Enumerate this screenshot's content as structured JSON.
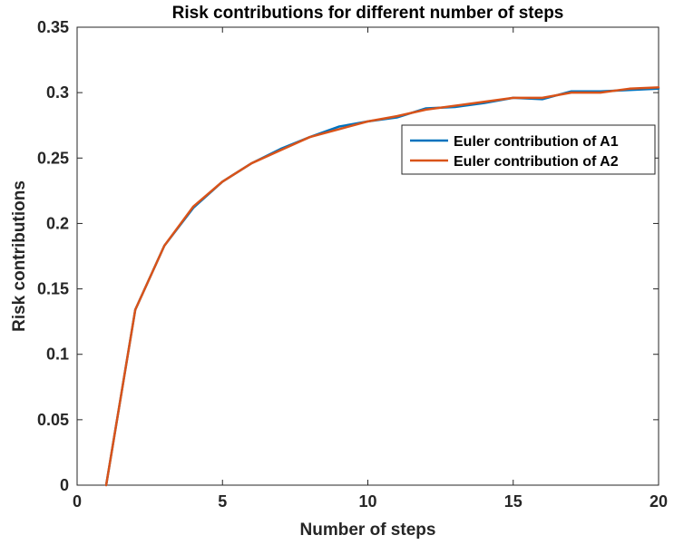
{
  "chart_data": {
    "type": "line",
    "title": "Risk contributions for different number of steps",
    "xlabel": "Number of steps",
    "ylabel": "Risk contributions",
    "xlim": [
      0,
      20
    ],
    "ylim": [
      0,
      0.35
    ],
    "xticks": [
      0,
      5,
      10,
      15,
      20
    ],
    "xtick_labels": [
      "0",
      "5",
      "10",
      "15",
      "20"
    ],
    "yticks": [
      0,
      0.05,
      0.1,
      0.15,
      0.2,
      0.25,
      0.3,
      0.35
    ],
    "ytick_labels": [
      "0",
      "0.05",
      "0.1",
      "0.15",
      "0.2",
      "0.25",
      "0.3",
      "0.35"
    ],
    "grid": false,
    "legend_position": "upper-right",
    "x": [
      1,
      2,
      3,
      4,
      5,
      6,
      7,
      8,
      9,
      10,
      11,
      12,
      13,
      14,
      15,
      16,
      17,
      18,
      19,
      20
    ],
    "series": [
      {
        "name": "Euler contribution of A1",
        "color": "#0072BD",
        "values": [
          0,
          0.134,
          0.183,
          0.212,
          0.232,
          0.246,
          0.257,
          0.266,
          0.274,
          0.278,
          0.281,
          0.288,
          0.289,
          0.292,
          0.296,
          0.295,
          0.301,
          0.301,
          0.302,
          0.303
        ]
      },
      {
        "name": "Euler contribution of A2",
        "color": "#D95319",
        "values": [
          0,
          0.134,
          0.183,
          0.213,
          0.232,
          0.246,
          0.256,
          0.266,
          0.272,
          0.278,
          0.282,
          0.287,
          0.29,
          0.293,
          0.296,
          0.296,
          0.3,
          0.3,
          0.303,
          0.304
        ]
      }
    ]
  }
}
